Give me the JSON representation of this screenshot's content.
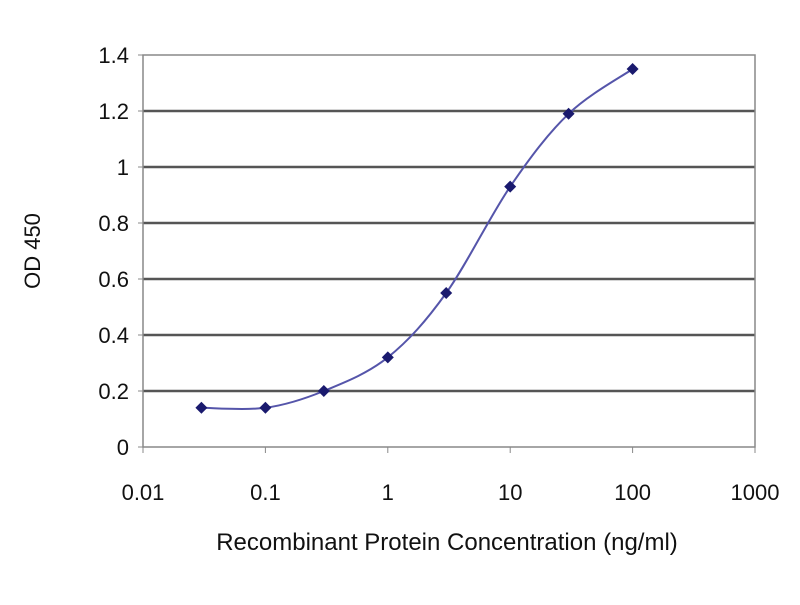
{
  "chart_data": {
    "type": "line",
    "title": "",
    "xlabel": "Recombinant Protein Concentration (ng/ml)",
    "ylabel": "OD 450",
    "xscale": "log",
    "xlim": [
      0.01,
      1000
    ],
    "ylim": [
      0,
      1.4
    ],
    "xticks": [
      "0.01",
      "0.1",
      "1",
      "10",
      "100",
      "1000"
    ],
    "xtick_values": [
      0.01,
      0.1,
      1,
      10,
      100,
      1000
    ],
    "yticks": [
      "0",
      "0.2",
      "0.4",
      "0.6",
      "0.8",
      "1",
      "1.2",
      "1.4"
    ],
    "ytick_values": [
      0,
      0.2,
      0.4,
      0.6,
      0.8,
      1,
      1.2,
      1.4
    ],
    "grid": "horizontal",
    "legend": "none",
    "series": [
      {
        "x": [
          0.03,
          0.1,
          0.3,
          1,
          3,
          10,
          30,
          100
        ],
        "y": [
          0.14,
          0.14,
          0.2,
          0.32,
          0.55,
          0.93,
          1.19,
          1.35
        ],
        "color": "#1a1a6e",
        "line_color": "#5555aa",
        "marker": "diamond"
      }
    ]
  }
}
